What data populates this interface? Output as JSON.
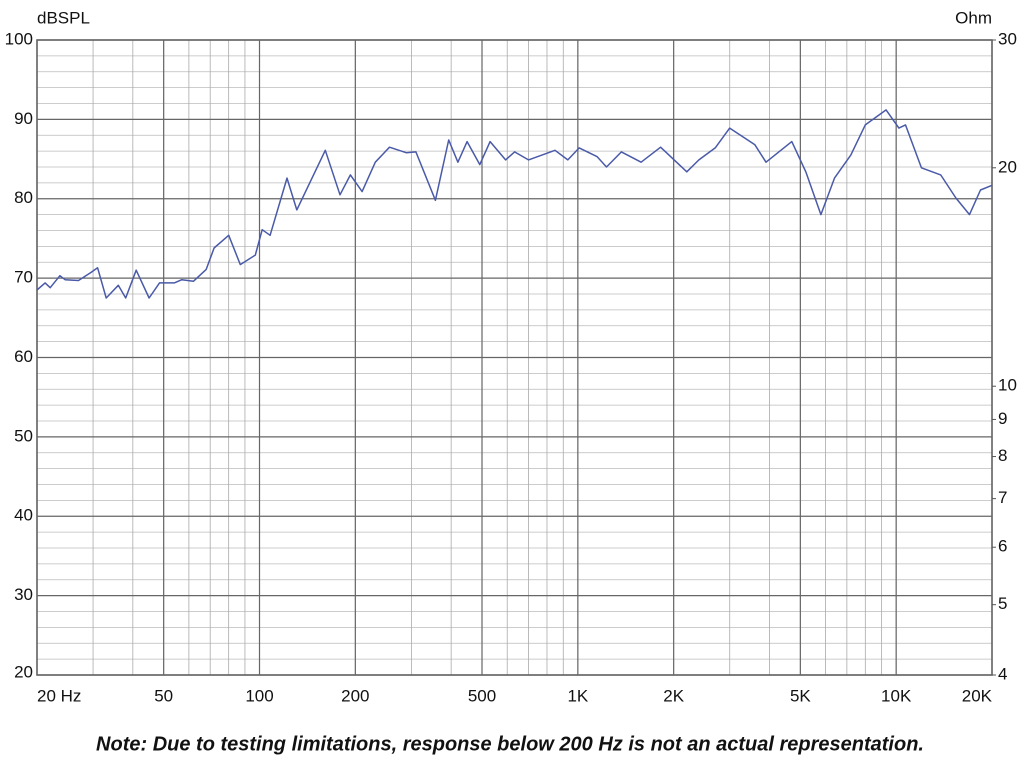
{
  "chart_data": {
    "type": "line",
    "ylabel": "dBSPL",
    "y2label": "Ohm",
    "note": "Note:  Due to testing limitations, response below 200 Hz is not an actual representation.",
    "xlog": true,
    "y2log": true,
    "grid": true,
    "xlim": [
      20,
      20000
    ],
    "ylim": [
      20,
      100
    ],
    "y2lim": [
      4,
      30
    ],
    "xticks": [
      {
        "value": 20,
        "label": "20 Hz"
      },
      50,
      100,
      200,
      500,
      {
        "value": 1000,
        "label": "1K"
      },
      {
        "value": 2000,
        "label": "2K"
      },
      {
        "value": 5000,
        "label": "5K"
      },
      {
        "value": 10000,
        "label": "10K"
      },
      {
        "value": 20000,
        "label": "20K"
      }
    ],
    "yticks": [
      20,
      30,
      40,
      50,
      60,
      70,
      80,
      90,
      100
    ],
    "y2ticks": [
      4,
      5,
      6,
      7,
      8,
      9,
      10,
      20,
      30
    ],
    "x": [
      20,
      21.2,
      22,
      23.6,
      24.5,
      27,
      29.5,
      31,
      33,
      36,
      38,
      41,
      45,
      48.5,
      54,
      57,
      62,
      68,
      72,
      80,
      87,
      97,
      102,
      108,
      122,
      131,
      161,
      179,
      193,
      210,
      231,
      256,
      289,
      310,
      357,
      393,
      420,
      449,
      492,
      530,
      593,
      633,
      700,
      848,
      930,
      1010,
      1150,
      1230,
      1370,
      1580,
      1820,
      2200,
      2400,
      2700,
      3000,
      3600,
      3900,
      4700,
      5200,
      5800,
      6400,
      7200,
      8000,
      9300,
      10200,
      10700,
      12000,
      13800,
      15400,
      17000,
      18400,
      20000
    ],
    "series": [
      {
        "color": "#4a5aa8",
        "values": [
          68.5,
          69.4,
          68.8,
          70.3,
          69.8,
          69.7,
          70.7,
          71.3,
          67.5,
          69.1,
          67.5,
          71,
          67.5,
          69.4,
          69.4,
          69.8,
          69.6,
          71.1,
          73.8,
          75.4,
          71.7,
          72.9,
          76.1,
          75.4,
          82.6,
          78.6,
          86.1,
          80.5,
          83,
          80.9,
          84.6,
          86.5,
          85.8,
          85.9,
          79.8,
          87.4,
          84.6,
          87.2,
          84.3,
          87.2,
          84.9,
          85.9,
          84.9,
          86.1,
          84.9,
          86.4,
          85.3,
          84,
          85.9,
          84.6,
          86.5,
          83.4,
          84.9,
          86.4,
          88.9,
          86.8,
          84.6,
          87.2,
          83.4,
          78,
          82.6,
          85.5,
          89.3,
          91.2,
          88.9,
          89.3,
          83.9,
          83,
          80.1,
          78,
          81.1,
          81.7
        ]
      }
    ]
  }
}
